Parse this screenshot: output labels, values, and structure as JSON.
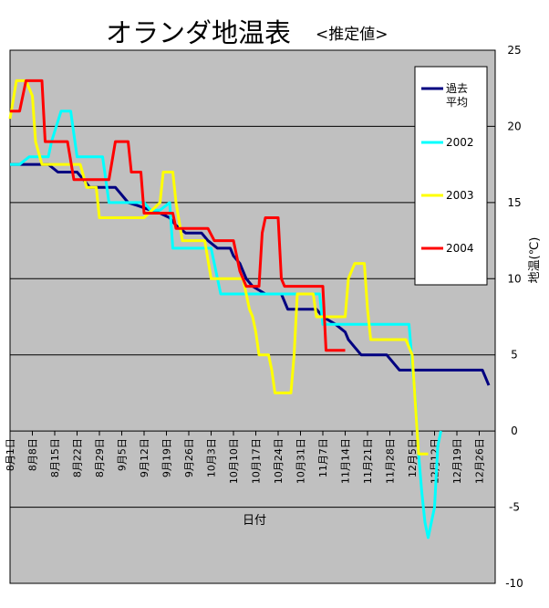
{
  "chart_data": {
    "type": "line",
    "title": "オランダ地温表",
    "subtitle": "<推定値>",
    "xlabel": "日付",
    "ylabel": "地温(℃)",
    "ylim": [
      -10,
      25
    ],
    "yticks": [
      -10,
      -5,
      0,
      5,
      10,
      15,
      20,
      25
    ],
    "xlim": [
      0,
      152
    ],
    "grid": "horizontal",
    "legend_position": "top-right",
    "x_categories": [
      {
        "label": "8月1日",
        "x": 0
      },
      {
        "label": "8月8日",
        "x": 7
      },
      {
        "label": "8月15日",
        "x": 14
      },
      {
        "label": "8月22日",
        "x": 21
      },
      {
        "label": "8月29日",
        "x": 28
      },
      {
        "label": "9月5日",
        "x": 35
      },
      {
        "label": "9月12日",
        "x": 42
      },
      {
        "label": "9月19日",
        "x": 49
      },
      {
        "label": "9月26日",
        "x": 56
      },
      {
        "label": "10月3日",
        "x": 63
      },
      {
        "label": "10月10日",
        "x": 70
      },
      {
        "label": "10月17日",
        "x": 77
      },
      {
        "label": "10月24日",
        "x": 84
      },
      {
        "label": "10月31日",
        "x": 91
      },
      {
        "label": "11月7日",
        "x": 98
      },
      {
        "label": "11月14日",
        "x": 105
      },
      {
        "label": "11月21日",
        "x": 112
      },
      {
        "label": "11月28日",
        "x": 119
      },
      {
        "label": "12月5日",
        "x": 126
      },
      {
        "label": "12月12日",
        "x": 133
      },
      {
        "label": "12月19日",
        "x": 140
      },
      {
        "label": "12月26日",
        "x": 147
      }
    ],
    "series": [
      {
        "name": "過去平均",
        "color": "#000080",
        "points": [
          [
            0,
            17.5
          ],
          [
            12,
            17.5
          ],
          [
            15,
            17
          ],
          [
            21,
            17
          ],
          [
            23,
            16.5
          ],
          [
            25,
            16
          ],
          [
            33,
            16
          ],
          [
            37,
            15
          ],
          [
            40,
            14.8
          ],
          [
            44,
            14.5
          ],
          [
            47,
            14.3
          ],
          [
            50,
            14
          ],
          [
            52,
            13.5
          ],
          [
            55,
            13
          ],
          [
            60,
            13
          ],
          [
            62,
            12.5
          ],
          [
            65,
            12
          ],
          [
            69,
            12
          ],
          [
            70,
            11.5
          ],
          [
            72,
            11
          ],
          [
            74,
            10
          ],
          [
            76,
            9.5
          ],
          [
            80,
            9
          ],
          [
            85,
            9
          ],
          [
            87,
            8
          ],
          [
            96,
            8
          ],
          [
            98,
            7.5
          ],
          [
            102,
            7
          ],
          [
            105,
            6.5
          ],
          [
            106,
            6
          ],
          [
            108,
            5.5
          ],
          [
            110,
            5
          ],
          [
            118,
            5
          ],
          [
            122,
            4
          ],
          [
            148,
            4
          ],
          [
            149,
            3.5
          ],
          [
            150,
            3
          ]
        ]
      },
      {
        "name": "2002",
        "color": "#00ffff",
        "points": [
          [
            0,
            17.5
          ],
          [
            3,
            17.5
          ],
          [
            6,
            18
          ],
          [
            12,
            18
          ],
          [
            13,
            19
          ],
          [
            16,
            21
          ],
          [
            19,
            21
          ],
          [
            21,
            18
          ],
          [
            29,
            18
          ],
          [
            31,
            15
          ],
          [
            38,
            15
          ],
          [
            42,
            15
          ],
          [
            44,
            14.5
          ],
          [
            47,
            14.5
          ],
          [
            50,
            15
          ],
          [
            51,
            12
          ],
          [
            63,
            12
          ],
          [
            66,
            9
          ],
          [
            97,
            9
          ],
          [
            98,
            7
          ],
          [
            125,
            7
          ],
          [
            127,
            2
          ],
          [
            128,
            -1.5
          ],
          [
            129,
            -4
          ],
          [
            130,
            -6
          ],
          [
            131,
            -7
          ],
          [
            133,
            -5
          ],
          [
            134,
            -1
          ],
          [
            135,
            0
          ]
        ]
      },
      {
        "name": "2003",
        "color": "#ffff00",
        "points": [
          [
            0,
            20.5
          ],
          [
            2,
            23
          ],
          [
            5,
            23
          ],
          [
            7,
            22
          ],
          [
            8,
            19
          ],
          [
            10,
            17.5
          ],
          [
            22,
            17.5
          ],
          [
            24,
            16
          ],
          [
            27,
            16
          ],
          [
            28,
            14
          ],
          [
            42,
            14
          ],
          [
            47,
            15
          ],
          [
            48,
            17
          ],
          [
            51,
            17
          ],
          [
            52,
            15
          ],
          [
            54,
            12.5
          ],
          [
            61,
            12.5
          ],
          [
            63,
            10
          ],
          [
            73,
            10
          ],
          [
            74,
            9
          ],
          [
            75,
            8
          ],
          [
            76,
            7.5
          ],
          [
            77,
            6.5
          ],
          [
            78,
            5
          ],
          [
            81,
            5
          ],
          [
            82,
            4
          ],
          [
            83,
            2.5
          ],
          [
            88,
            2.5
          ],
          [
            89,
            5
          ],
          [
            90,
            9
          ],
          [
            95,
            9
          ],
          [
            96,
            7.5
          ],
          [
            105,
            7.5
          ],
          [
            106,
            10
          ],
          [
            108,
            11
          ],
          [
            111,
            11
          ],
          [
            112,
            8
          ],
          [
            113,
            6
          ],
          [
            124,
            6
          ],
          [
            126,
            5
          ],
          [
            128,
            -1.5
          ],
          [
            131,
            -1.5
          ]
        ]
      },
      {
        "name": "2004",
        "color": "#ff0000",
        "points": [
          [
            0,
            21
          ],
          [
            3,
            21
          ],
          [
            5,
            23
          ],
          [
            10,
            23
          ],
          [
            11,
            19
          ],
          [
            18,
            19
          ],
          [
            20,
            16.5
          ],
          [
            31,
            16.5
          ],
          [
            33,
            19
          ],
          [
            37,
            19
          ],
          [
            38,
            17
          ],
          [
            41,
            17
          ],
          [
            42,
            14.3
          ],
          [
            51,
            14.3
          ],
          [
            52,
            13.3
          ],
          [
            62,
            13.3
          ],
          [
            64,
            12.5
          ],
          [
            70,
            12.5
          ],
          [
            72,
            10.5
          ],
          [
            74,
            9.5
          ],
          [
            78,
            9.5
          ],
          [
            79,
            13
          ],
          [
            80,
            14
          ],
          [
            84,
            14
          ],
          [
            85,
            10
          ],
          [
            86,
            9.5
          ],
          [
            98,
            9.5
          ],
          [
            99,
            5.3
          ],
          [
            103,
            5.3
          ],
          [
            105,
            5.3
          ]
        ]
      }
    ]
  }
}
